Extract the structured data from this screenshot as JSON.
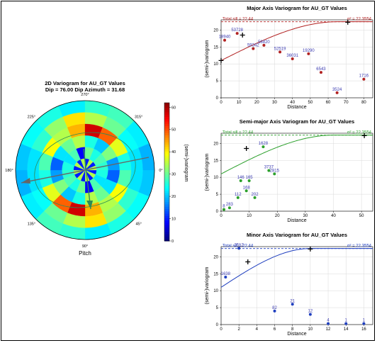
{
  "polar": {
    "title": "2D Variogram for AU_GT Values",
    "subtitle": "Dip = 76.00  Dip Azimuth = 31.68",
    "angle_labels": [
      {
        "deg": 270,
        "label": "270°"
      },
      {
        "deg": 315,
        "label": "315°"
      },
      {
        "deg": 0,
        "label": "0°"
      },
      {
        "deg": 45,
        "label": "45°"
      },
      {
        "deg": 90,
        "label": "90°"
      },
      {
        "deg": 135,
        "label": "135°"
      },
      {
        "deg": 180,
        "label": "180°"
      },
      {
        "deg": 225,
        "label": "225°"
      }
    ],
    "xlabel": "Pitch",
    "colorbar_label": "(semi-)variogram",
    "colorbar_ticks": [
      0,
      10,
      20,
      30,
      40,
      50,
      60
    ],
    "colorbar_range": [
      0,
      62
    ]
  },
  "chart_data": [
    {
      "type": "scatter",
      "title": "Major Axis Variogram for AU_GT Values",
      "xlabel": "Distance",
      "ylabel": "(semi-)variogram",
      "xlim": [
        0,
        85
      ],
      "ylim": [
        0,
        23
      ],
      "xticks": [
        0,
        10,
        20,
        30,
        40,
        50,
        60,
        70,
        80
      ],
      "yticks": [
        0,
        5,
        10,
        15,
        20
      ],
      "color": "#b22222",
      "sill_label": "Total sill = 22.44",
      "sigma_label": "σ² = 22.3554",
      "sill": 22.44,
      "grid": true,
      "model_range": 65,
      "model_nugget": 11,
      "points": [
        {
          "x": 2,
          "y": 17,
          "label": "18940"
        },
        {
          "x": 9,
          "y": 19,
          "label": "53728"
        },
        {
          "x": 18,
          "y": 14.5,
          "label": "59342"
        },
        {
          "x": 24,
          "y": 15.5,
          "label": "58820"
        },
        {
          "x": 33,
          "y": 13.5,
          "label": "52519"
        },
        {
          "x": 40,
          "y": 11.5,
          "label": "36031"
        },
        {
          "x": 49,
          "y": 13,
          "label": "19290"
        },
        {
          "x": 56,
          "y": 7.5,
          "label": "6543"
        },
        {
          "x": 65,
          "y": 1.5,
          "label": "3524"
        },
        {
          "x": 80,
          "y": 5.5,
          "label": "1716"
        }
      ],
      "crosses": [
        {
          "x": 0,
          "y": 11
        },
        {
          "x": 12,
          "y": 18.5
        },
        {
          "x": 71,
          "y": 22.3
        }
      ]
    },
    {
      "type": "scatter",
      "title": "Semi-major Axis Variogram for AU_GT Values",
      "xlabel": "Distance",
      "ylabel": "(semi-)variogram",
      "xlim": [
        0,
        54
      ],
      "ylim": [
        0,
        23
      ],
      "xticks": [
        0,
        10,
        20,
        30,
        40,
        50
      ],
      "yticks": [
        0,
        5,
        10,
        15,
        20
      ],
      "color": "#2ca02c",
      "sill_label": "Total sill = 22.44",
      "sigma_label": "σ² = 22.3554",
      "sill": 22.44,
      "grid": true,
      "model_range": 40,
      "model_nugget": 11,
      "points": [
        {
          "x": 1,
          "y": 0.5,
          "label": "8"
        },
        {
          "x": 3,
          "y": 1,
          "label": "283"
        },
        {
          "x": 6,
          "y": 4,
          "label": "112"
        },
        {
          "x": 7,
          "y": 9,
          "label": "146"
        },
        {
          "x": 9,
          "y": 6,
          "label": "168"
        },
        {
          "x": 10,
          "y": 9,
          "label": "165"
        },
        {
          "x": 12,
          "y": 4,
          "label": "202"
        },
        {
          "x": 15,
          "y": 19,
          "label": "1628"
        },
        {
          "x": 17,
          "y": 12,
          "label": "3737"
        },
        {
          "x": 19,
          "y": 11,
          "label": "2815"
        }
      ],
      "crosses": [
        {
          "x": 9,
          "y": 18.5
        },
        {
          "x": 51,
          "y": 22.3
        }
      ]
    },
    {
      "type": "scatter",
      "title": "Minor Axis Variogram for AU_GT Values",
      "xlabel": "Distance",
      "ylabel": "(semi-)variogram",
      "xlim": [
        0,
        17
      ],
      "ylim": [
        0,
        23
      ],
      "xticks": [
        0,
        2,
        4,
        6,
        8,
        10,
        12,
        14,
        16
      ],
      "yticks": [
        0,
        5,
        10,
        15,
        20
      ],
      "color": "#1f3fbf",
      "sill_label": "Total sill = 22.44",
      "sigma_label": "σ² = 22.3554",
      "sill": 22.44,
      "grid": true,
      "model_range": 10,
      "model_nugget": 11,
      "points": [
        {
          "x": 0.5,
          "y": 14,
          "label": "1638"
        },
        {
          "x": 2,
          "y": 22.5,
          "label": "2512"
        },
        {
          "x": 6,
          "y": 4,
          "label": "82"
        },
        {
          "x": 8,
          "y": 6,
          "label": "21"
        },
        {
          "x": 10,
          "y": 3,
          "label": "12"
        },
        {
          "x": 12,
          "y": 0.3,
          "label": "4"
        },
        {
          "x": 14,
          "y": 0.3,
          "label": "1"
        },
        {
          "x": 16,
          "y": 0.3,
          "label": "1"
        }
      ],
      "crosses": [
        {
          "x": 3,
          "y": 18.5
        },
        {
          "x": 10,
          "y": 22.3
        }
      ]
    }
  ]
}
